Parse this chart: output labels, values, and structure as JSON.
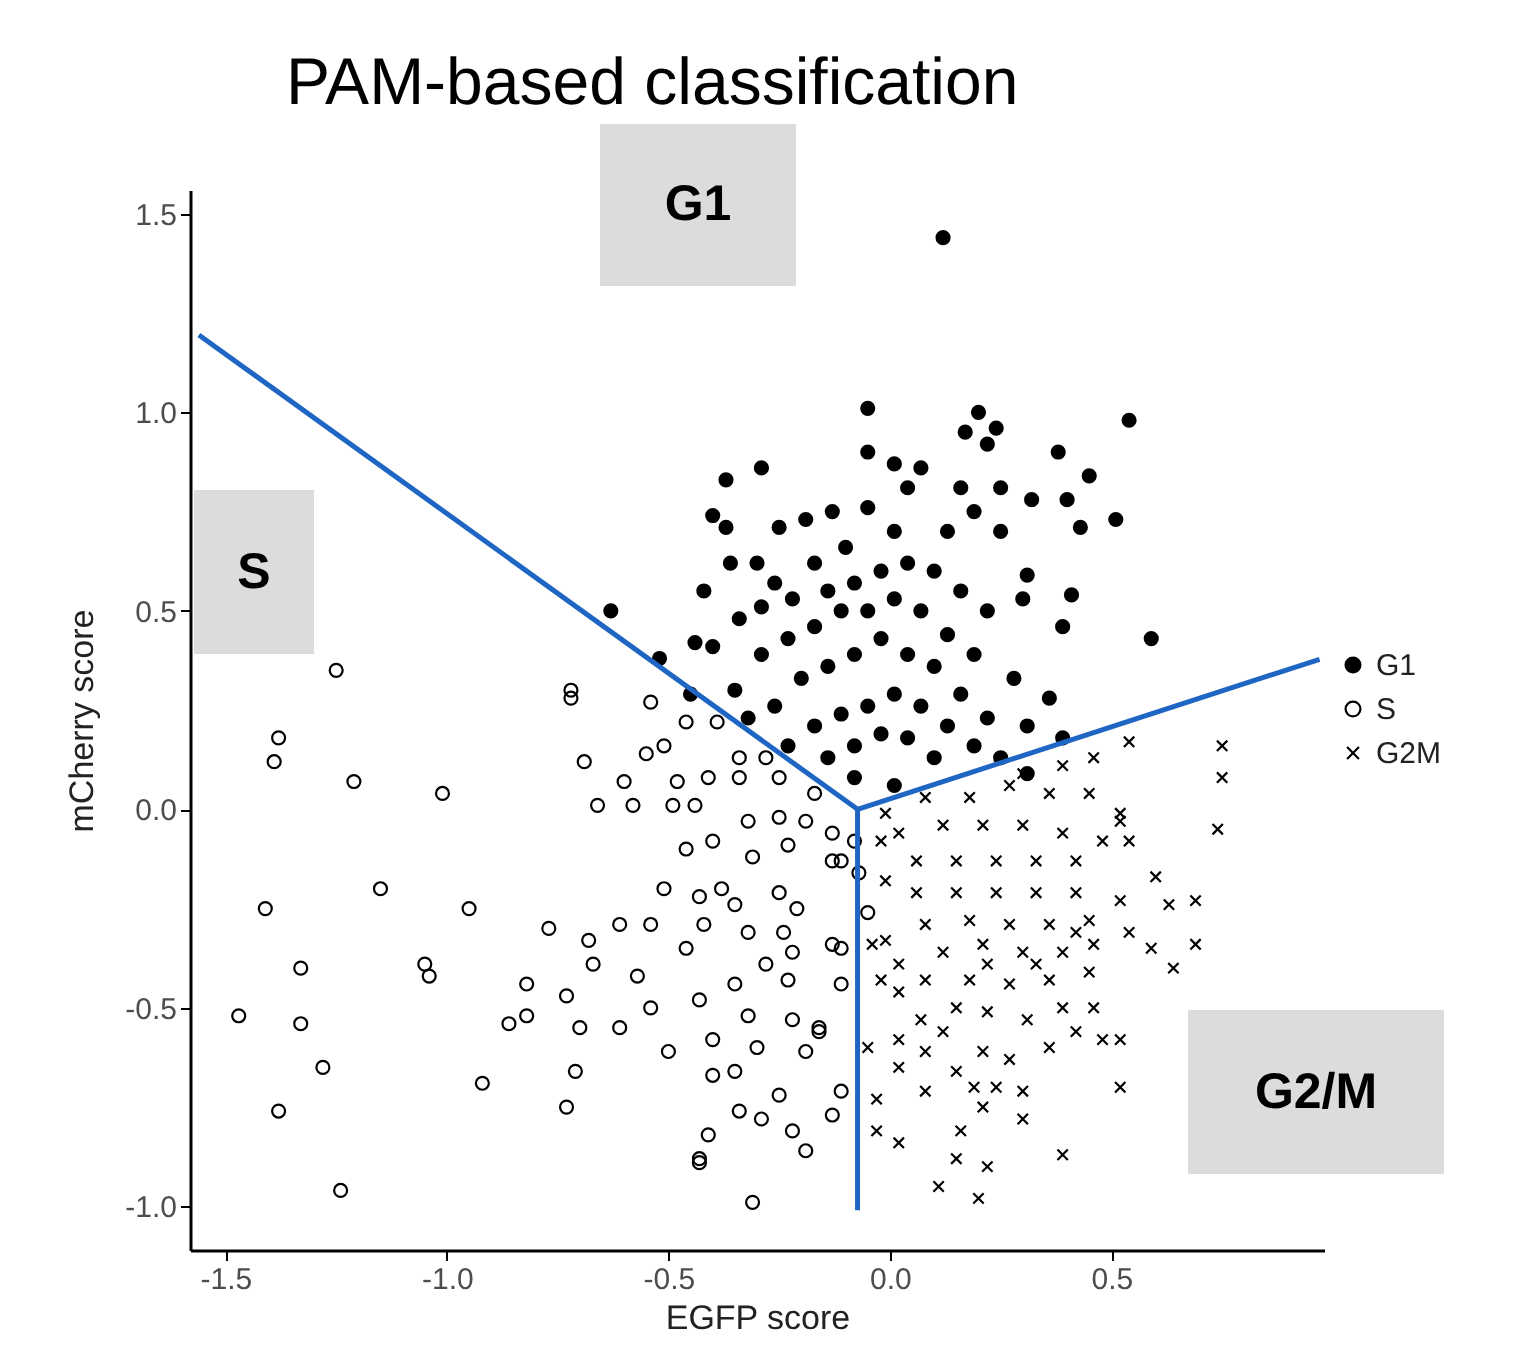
{
  "chart_data": {
    "type": "scatter",
    "title": "PAM-based classification",
    "xlabel": "EGFP score",
    "ylabel": "mCherry score",
    "annotations": [
      "G1",
      "S",
      "G2/M"
    ],
    "xlim": [
      -1.58,
      0.98
    ],
    "ylim": [
      -1.11,
      1.56
    ],
    "xticks": [
      {
        "value": -1.5,
        "label": "-1.5"
      },
      {
        "value": -1,
        "label": "-1.0"
      },
      {
        "value": -0.5,
        "label": "-0.5"
      },
      {
        "value": 0,
        "label": "0.0"
      },
      {
        "value": 0.5,
        "label": "0.5"
      }
    ],
    "yticks": [
      {
        "value": -1,
        "label": "-1.0"
      },
      {
        "value": -0.5,
        "label": "-0.5"
      },
      {
        "value": 0,
        "label": "0.0"
      },
      {
        "value": 0.5,
        "label": "0.5"
      },
      {
        "value": 1,
        "label": "1.0"
      },
      {
        "value": 1.5,
        "label": "1.5"
      }
    ],
    "grid": false,
    "legend": "right",
    "series": [
      {
        "name": "G1",
        "color": "#000000",
        "marker": "circle",
        "x": [
          0.12,
          -0.05,
          0.2,
          0.24,
          0.54,
          0.17,
          0.22,
          -0.05,
          0.38,
          -0.29,
          -0.37,
          0.45,
          0.01,
          0.07,
          -0.4,
          -0.37,
          -0.25,
          -0.19,
          -0.13,
          -0.05,
          0.04,
          0.16,
          0.25,
          0.32,
          0.4,
          0.43,
          0.51,
          -0.36,
          -0.3,
          -0.42,
          -0.26,
          -0.17,
          -0.1,
          0.01,
          0.13,
          0.19,
          0.25,
          0.31,
          0.41,
          0.59,
          -0.63,
          -0.44,
          -0.4,
          -0.52,
          -0.34,
          -0.29,
          -0.22,
          -0.14,
          -0.08,
          -0.02,
          0.04,
          0.1,
          0.16,
          0.22,
          0.3,
          0.39,
          -0.45,
          -0.35,
          -0.29,
          -0.23,
          -0.17,
          -0.11,
          -0.05,
          0.01,
          0.07,
          0.13,
          0.19,
          0.28,
          0.36,
          -0.32,
          -0.26,
          -0.2,
          -0.14,
          -0.08,
          -0.02,
          0.04,
          0.1,
          0.16,
          0.22,
          0.31,
          0.39,
          -0.23,
          -0.17,
          -0.11,
          -0.05,
          0.01,
          0.07,
          0.13,
          0.19,
          -0.14,
          -0.08,
          -0.02,
          0.04,
          0.1,
          0.01,
          -0.08,
          0.25,
          0.31
        ],
        "values": [
          1.44,
          1.01,
          1.0,
          0.96,
          0.98,
          0.95,
          0.92,
          0.9,
          0.9,
          0.86,
          0.83,
          0.84,
          0.87,
          0.86,
          0.74,
          0.71,
          0.71,
          0.73,
          0.75,
          0.76,
          0.81,
          0.81,
          0.81,
          0.78,
          0.78,
          0.71,
          0.73,
          0.62,
          0.62,
          0.55,
          0.57,
          0.62,
          0.66,
          0.7,
          0.7,
          0.75,
          0.7,
          0.59,
          0.54,
          0.43,
          0.5,
          0.42,
          0.41,
          0.38,
          0.48,
          0.51,
          0.53,
          0.55,
          0.57,
          0.6,
          0.62,
          0.6,
          0.55,
          0.5,
          0.53,
          0.46,
          0.29,
          0.3,
          0.39,
          0.43,
          0.46,
          0.5,
          0.5,
          0.53,
          0.5,
          0.44,
          0.39,
          0.33,
          0.28,
          0.23,
          0.26,
          0.33,
          0.36,
          0.39,
          0.43,
          0.39,
          0.36,
          0.29,
          0.23,
          0.21,
          0.18,
          0.16,
          0.21,
          0.24,
          0.26,
          0.29,
          0.26,
          0.21,
          0.16,
          0.13,
          0.16,
          0.19,
          0.18,
          0.13,
          0.06,
          0.08,
          0.13,
          0.09
        ]
      },
      {
        "name": "S",
        "color": "#000000",
        "marker": "circle",
        "x": [
          -1.25,
          -1.38,
          -1.39,
          -1.21,
          -1.01,
          -1.15,
          -1.41,
          -0.95,
          -1.33,
          -1.05,
          -1.04,
          -1.47,
          -1.33,
          -1.28,
          -1.38,
          -1.24,
          -0.92,
          -0.77,
          -0.82,
          -0.86,
          -0.82,
          -0.73,
          -0.7,
          -0.71,
          -0.73,
          -0.68,
          -0.67,
          -0.61,
          -0.54,
          -0.57,
          -0.61,
          -0.54,
          -0.5,
          -0.72,
          -0.72,
          -0.69,
          -0.66,
          -0.6,
          -0.58,
          -0.54,
          -0.55,
          -0.51,
          -0.49,
          -0.48,
          -0.44,
          -0.46,
          -0.41,
          -0.39,
          -0.46,
          -0.4,
          -0.51,
          -0.43,
          -0.38,
          -0.35,
          -0.42,
          -0.46,
          -0.32,
          -0.25,
          -0.21,
          -0.24,
          -0.22,
          -0.28,
          -0.23,
          -0.35,
          -0.43,
          -0.32,
          -0.22,
          -0.4,
          -0.3,
          -0.35,
          -0.4,
          -0.19,
          -0.25,
          -0.34,
          -0.29,
          -0.22,
          -0.19,
          -0.41,
          -0.43,
          -0.31,
          -0.32,
          -0.34,
          -0.34,
          -0.28,
          -0.25,
          -0.19,
          -0.23,
          -0.31,
          -0.13,
          -0.13,
          -0.13,
          -0.16,
          -0.13,
          -0.11,
          -0.05,
          -0.11,
          -0.11,
          -0.16,
          -0.11,
          -0.43,
          -0.08,
          -0.07,
          -0.17,
          -0.25
        ],
        "values": [
          0.35,
          0.18,
          0.12,
          0.07,
          0.04,
          -0.2,
          -0.25,
          -0.25,
          -0.4,
          -0.39,
          -0.42,
          -0.52,
          -0.54,
          -0.65,
          -0.76,
          -0.96,
          -0.69,
          -0.3,
          -0.44,
          -0.54,
          -0.52,
          -0.47,
          -0.55,
          -0.66,
          -0.75,
          -0.33,
          -0.39,
          -0.29,
          -0.29,
          -0.42,
          -0.55,
          -0.5,
          -0.61,
          0.3,
          0.28,
          0.12,
          0.01,
          0.07,
          0.01,
          0.27,
          0.14,
          0.16,
          0.01,
          0.07,
          0.01,
          0.22,
          0.08,
          0.22,
          -0.1,
          -0.08,
          -0.2,
          -0.22,
          -0.2,
          -0.24,
          -0.29,
          -0.35,
          -0.31,
          -0.21,
          -0.25,
          -0.31,
          -0.36,
          -0.39,
          -0.43,
          -0.44,
          -0.48,
          -0.52,
          -0.53,
          -0.58,
          -0.6,
          -0.66,
          -0.67,
          -0.61,
          -0.72,
          -0.76,
          -0.78,
          -0.81,
          -0.86,
          -0.82,
          -0.89,
          -0.99,
          -0.03,
          0.08,
          0.13,
          0.13,
          -0.02,
          -0.03,
          -0.09,
          -0.12,
          -0.13,
          -0.06,
          -0.34,
          -0.55,
          -0.77,
          -0.13,
          -0.26,
          -0.35,
          -0.44,
          -0.56,
          -0.71,
          -0.88,
          -0.08,
          -0.16,
          0.04,
          0.08
        ]
      },
      {
        "name": "G2M",
        "color": "#000000",
        "marker": "cross",
        "x": [
          0.75,
          0.75,
          0.74,
          0.54,
          0.46,
          0.39,
          0.52,
          0.54,
          0.6,
          0.69,
          0.63,
          0.54,
          0.59,
          0.69,
          0.64,
          0.52,
          0.52,
          0.39,
          0.2,
          0.11,
          0.15,
          0.22,
          0.16,
          0.02,
          -0.03,
          -0.03,
          0.02,
          0.08,
          0.21,
          0.3,
          0.3,
          0.24,
          0.15,
          0.08,
          0.02,
          -0.05,
          0.12,
          0.21,
          0.27,
          0.36,
          0.42,
          0.48,
          0.46,
          0.39,
          0.31,
          0.22,
          0.15,
          0.07,
          0.02,
          0.08,
          0.18,
          0.27,
          0.36,
          0.45,
          0.46,
          0.39,
          0.3,
          0.21,
          0.12,
          0.02,
          -0.01,
          -0.04,
          0.08,
          0.18,
          0.27,
          0.36,
          0.45,
          0.52,
          0.42,
          0.33,
          0.24,
          0.15,
          0.06,
          -0.01,
          0.06,
          0.15,
          0.24,
          0.33,
          0.42,
          0.48,
          0.39,
          0.3,
          0.21,
          0.12,
          0.02,
          -0.02,
          -0.01,
          0.08,
          0.18,
          0.27,
          0.36,
          0.45,
          0.52,
          0.3,
          0.22,
          0.33,
          0.42,
          -0.02,
          0.19
        ],
        "values": [
          0.16,
          0.08,
          -0.05,
          0.17,
          0.13,
          0.11,
          -0.03,
          -0.08,
          -0.17,
          -0.23,
          -0.24,
          -0.31,
          -0.35,
          -0.34,
          -0.4,
          -0.58,
          -0.7,
          -0.87,
          -0.98,
          -0.95,
          -0.88,
          -0.9,
          -0.81,
          -0.84,
          -0.81,
          -0.73,
          -0.65,
          -0.71,
          -0.75,
          -0.78,
          -0.71,
          -0.7,
          -0.66,
          -0.61,
          -0.58,
          -0.6,
          -0.56,
          -0.61,
          -0.63,
          -0.6,
          -0.56,
          -0.58,
          -0.5,
          -0.5,
          -0.53,
          -0.51,
          -0.5,
          -0.53,
          -0.46,
          -0.43,
          -0.43,
          -0.44,
          -0.43,
          -0.41,
          -0.34,
          -0.36,
          -0.36,
          -0.34,
          -0.36,
          -0.39,
          -0.33,
          -0.34,
          -0.29,
          -0.28,
          -0.29,
          -0.29,
          -0.28,
          -0.23,
          -0.21,
          -0.21,
          -0.21,
          -0.21,
          -0.21,
          -0.18,
          -0.13,
          -0.13,
          -0.13,
          -0.13,
          -0.13,
          -0.08,
          -0.06,
          -0.04,
          -0.04,
          -0.04,
          -0.06,
          -0.08,
          -0.01,
          0.03,
          0.03,
          0.06,
          0.04,
          0.04,
          -0.01,
          0.09,
          -0.39,
          -0.39,
          -0.31,
          -0.43,
          -0.7
        ]
      },
      {
        "type": "line",
        "color": "#1f66c4",
        "x": [
          -1.56,
          -0.073
        ],
        "values": [
          1.195,
          0.0
        ]
      },
      {
        "type": "line",
        "color": "#1f66c4",
        "x": [
          -0.073,
          0.97
        ],
        "values": [
          0.0,
          0.378
        ]
      },
      {
        "type": "line",
        "color": "#1f66c4",
        "x": [
          -0.073,
          -0.073
        ],
        "values": [
          0.0,
          -1.01
        ]
      }
    ]
  }
}
